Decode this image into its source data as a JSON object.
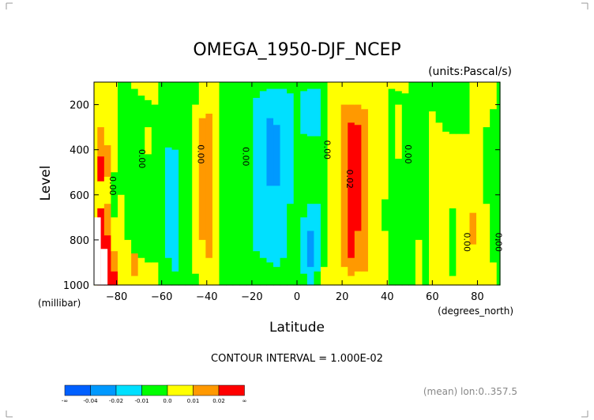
{
  "chart_data": {
    "type": "heatmap",
    "title": "OMEGA_1950-DJF_NCEP",
    "units": "(units:Pascal/s)",
    "xlabel": "Latitude",
    "ylabel": "Level",
    "x_units": "(degrees_north)",
    "y_units": "(millibar)",
    "xlim": [
      -90,
      90
    ],
    "ylim": [
      1000,
      100
    ],
    "x_ticks": [
      -80,
      -60,
      -40,
      -20,
      0,
      20,
      40,
      60,
      80
    ],
    "y_ticks": [
      200,
      400,
      600,
      800,
      1000
    ],
    "contour_interval_text": "CONTOUR INTERVAL = 1.000E-02",
    "footer_text": "(mean) lon:0..357.5",
    "contour_labels": [
      {
        "text": "0.00",
        "lat": -83,
        "lev": 560
      },
      {
        "text": "0.00",
        "lat": -70,
        "lev": 440
      },
      {
        "text": "0.00",
        "lat": -44,
        "lev": 420
      },
      {
        "text": "0.00",
        "lat": -24,
        "lev": 430
      },
      {
        "text": "0.00",
        "lat": 12,
        "lev": 400
      },
      {
        "text": "0.02",
        "lat": 22,
        "lev": 530
      },
      {
        "text": "0.00",
        "lat": 48,
        "lev": 420
      },
      {
        "text": "0.00",
        "lat": 74,
        "lev": 810
      },
      {
        "text": "0.00",
        "lat": 88,
        "lev": 810
      }
    ],
    "legend": {
      "colors": [
        "#0060ff",
        "#0099ff",
        "#00e0ff",
        "#00ff00",
        "#ffff00",
        "#ff9900",
        "#ff0000"
      ],
      "labels": [
        "-∞",
        "-0.04",
        "-0.02",
        "-0.01",
        "0.0",
        "0.01",
        "0.02",
        "∞"
      ]
    },
    "columns": [
      {
        "lat": -90,
        "segs": [
          [
            100,
            1000,
            4
          ]
        ]
      },
      {
        "lat": -87,
        "segs": [
          [
            100,
            300,
            4
          ],
          [
            300,
            430,
            5
          ],
          [
            430,
            540,
            6
          ],
          [
            540,
            660,
            4
          ],
          [
            660,
            820,
            6
          ],
          [
            820,
            1000,
            6
          ]
        ]
      },
      {
        "lat": -84,
        "segs": [
          [
            100,
            380,
            4
          ],
          [
            380,
            520,
            5
          ],
          [
            520,
            640,
            4
          ],
          [
            640,
            780,
            5
          ],
          [
            780,
            900,
            6
          ],
          [
            900,
            1000,
            6
          ]
        ]
      },
      {
        "lat": -81,
        "segs": [
          [
            100,
            500,
            4
          ],
          [
            500,
            700,
            3
          ],
          [
            700,
            850,
            4
          ],
          [
            850,
            940,
            5
          ],
          [
            940,
            1000,
            6
          ]
        ]
      },
      {
        "lat": -78,
        "segs": [
          [
            100,
            600,
            3
          ],
          [
            600,
            820,
            4
          ],
          [
            820,
            1000,
            4
          ]
        ]
      },
      {
        "lat": -75,
        "segs": [
          [
            100,
            250,
            3
          ],
          [
            250,
            800,
            3
          ],
          [
            800,
            1000,
            4
          ]
        ]
      },
      {
        "lat": -72,
        "segs": [
          [
            100,
            130,
            4
          ],
          [
            130,
            860,
            3
          ],
          [
            860,
            960,
            5
          ],
          [
            960,
            1000,
            4
          ]
        ]
      },
      {
        "lat": -69,
        "segs": [
          [
            100,
            160,
            4
          ],
          [
            160,
            880,
            3
          ],
          [
            880,
            1000,
            4
          ]
        ]
      },
      {
        "lat": -66,
        "segs": [
          [
            100,
            180,
            4
          ],
          [
            180,
            300,
            3
          ],
          [
            300,
            420,
            4
          ],
          [
            420,
            900,
            3
          ],
          [
            900,
            1000,
            4
          ]
        ]
      },
      {
        "lat": -63,
        "segs": [
          [
            100,
            200,
            4
          ],
          [
            200,
            900,
            3
          ],
          [
            900,
            1000,
            4
          ]
        ]
      },
      {
        "lat": -60,
        "segs": [
          [
            100,
            1000,
            3
          ]
        ]
      },
      {
        "lat": -57,
        "segs": [
          [
            100,
            390,
            3
          ],
          [
            390,
            880,
            2
          ],
          [
            880,
            1000,
            3
          ]
        ]
      },
      {
        "lat": -54,
        "segs": [
          [
            100,
            400,
            3
          ],
          [
            400,
            940,
            2
          ],
          [
            940,
            1000,
            3
          ]
        ]
      },
      {
        "lat": -51,
        "segs": [
          [
            100,
            1000,
            3
          ]
        ]
      },
      {
        "lat": -48,
        "segs": [
          [
            100,
            1000,
            3
          ]
        ]
      },
      {
        "lat": -45,
        "segs": [
          [
            100,
            200,
            3
          ],
          [
            200,
            950,
            4
          ],
          [
            950,
            1000,
            3
          ]
        ]
      },
      {
        "lat": -42,
        "segs": [
          [
            100,
            260,
            4
          ],
          [
            260,
            800,
            5
          ],
          [
            800,
            1000,
            4
          ]
        ]
      },
      {
        "lat": -39,
        "segs": [
          [
            100,
            240,
            4
          ],
          [
            240,
            880,
            5
          ],
          [
            880,
            1000,
            4
          ]
        ]
      },
      {
        "lat": -36,
        "segs": [
          [
            100,
            1000,
            4
          ]
        ]
      },
      {
        "lat": -33,
        "segs": [
          [
            100,
            1000,
            3
          ]
        ]
      },
      {
        "lat": -30,
        "segs": [
          [
            100,
            1000,
            3
          ]
        ]
      },
      {
        "lat": -27,
        "segs": [
          [
            100,
            1000,
            3
          ]
        ]
      },
      {
        "lat": -24,
        "segs": [
          [
            100,
            1000,
            3
          ]
        ]
      },
      {
        "lat": -21,
        "segs": [
          [
            100,
            1000,
            3
          ]
        ]
      },
      {
        "lat": -18,
        "segs": [
          [
            100,
            170,
            3
          ],
          [
            170,
            850,
            2
          ],
          [
            850,
            1000,
            3
          ]
        ]
      },
      {
        "lat": -15,
        "segs": [
          [
            100,
            140,
            3
          ],
          [
            140,
            880,
            2
          ],
          [
            880,
            1000,
            3
          ]
        ]
      },
      {
        "lat": -12,
        "segs": [
          [
            100,
            130,
            3
          ],
          [
            130,
            260,
            2
          ],
          [
            260,
            560,
            1
          ],
          [
            560,
            900,
            2
          ],
          [
            900,
            1000,
            3
          ]
        ]
      },
      {
        "lat": -9,
        "segs": [
          [
            100,
            130,
            3
          ],
          [
            130,
            290,
            2
          ],
          [
            290,
            560,
            1
          ],
          [
            560,
            920,
            2
          ],
          [
            920,
            1000,
            3
          ]
        ]
      },
      {
        "lat": -6,
        "segs": [
          [
            100,
            130,
            3
          ],
          [
            130,
            880,
            2
          ],
          [
            880,
            1000,
            3
          ]
        ]
      },
      {
        "lat": -3,
        "segs": [
          [
            100,
            150,
            3
          ],
          [
            150,
            640,
            2
          ],
          [
            640,
            1000,
            3
          ]
        ]
      },
      {
        "lat": 0,
        "segs": [
          [
            100,
            1000,
            3
          ]
        ]
      },
      {
        "lat": 3,
        "segs": [
          [
            100,
            140,
            3
          ],
          [
            140,
            330,
            2
          ],
          [
            330,
            700,
            3
          ],
          [
            700,
            950,
            2
          ],
          [
            950,
            1000,
            3
          ]
        ]
      },
      {
        "lat": 6,
        "segs": [
          [
            100,
            130,
            3
          ],
          [
            130,
            340,
            2
          ],
          [
            340,
            640,
            3
          ],
          [
            640,
            760,
            2
          ],
          [
            760,
            920,
            1
          ],
          [
            920,
            1000,
            2
          ]
        ]
      },
      {
        "lat": 9,
        "segs": [
          [
            100,
            130,
            3
          ],
          [
            130,
            340,
            2
          ],
          [
            340,
            640,
            3
          ],
          [
            640,
            940,
            2
          ],
          [
            940,
            1000,
            3
          ]
        ]
      },
      {
        "lat": 12,
        "segs": [
          [
            100,
            240,
            3
          ],
          [
            240,
            920,
            3
          ],
          [
            920,
            1000,
            4
          ]
        ]
      },
      {
        "lat": 15,
        "segs": [
          [
            100,
            1000,
            4
          ]
        ]
      },
      {
        "lat": 18,
        "segs": [
          [
            100,
            160,
            4
          ],
          [
            160,
            940,
            4
          ],
          [
            940,
            1000,
            4
          ]
        ]
      },
      {
        "lat": 21,
        "segs": [
          [
            100,
            200,
            4
          ],
          [
            200,
            920,
            5
          ],
          [
            920,
            1000,
            4
          ]
        ]
      },
      {
        "lat": 24,
        "segs": [
          [
            100,
            200,
            4
          ],
          [
            200,
            280,
            5
          ],
          [
            280,
            880,
            6
          ],
          [
            880,
            960,
            5
          ],
          [
            960,
            1000,
            4
          ]
        ]
      },
      {
        "lat": 27,
        "segs": [
          [
            100,
            200,
            4
          ],
          [
            200,
            290,
            5
          ],
          [
            290,
            760,
            6
          ],
          [
            760,
            940,
            5
          ],
          [
            940,
            1000,
            4
          ]
        ]
      },
      {
        "lat": 30,
        "segs": [
          [
            100,
            220,
            4
          ],
          [
            220,
            940,
            5
          ],
          [
            940,
            1000,
            4
          ]
        ]
      },
      {
        "lat": 33,
        "segs": [
          [
            100,
            1000,
            4
          ]
        ]
      },
      {
        "lat": 36,
        "segs": [
          [
            100,
            1000,
            4
          ]
        ]
      },
      {
        "lat": 39,
        "segs": [
          [
            100,
            620,
            4
          ],
          [
            620,
            760,
            3
          ],
          [
            760,
            1000,
            4
          ]
        ]
      },
      {
        "lat": 42,
        "segs": [
          [
            100,
            130,
            4
          ],
          [
            130,
            1000,
            3
          ]
        ]
      },
      {
        "lat": 45,
        "segs": [
          [
            100,
            140,
            4
          ],
          [
            140,
            200,
            3
          ],
          [
            200,
            440,
            4
          ],
          [
            440,
            1000,
            3
          ]
        ]
      },
      {
        "lat": 48,
        "segs": [
          [
            100,
            150,
            4
          ],
          [
            150,
            1000,
            3
          ]
        ]
      },
      {
        "lat": 51,
        "segs": [
          [
            100,
            150,
            3
          ],
          [
            150,
            520,
            3
          ],
          [
            520,
            1000,
            3
          ]
        ]
      },
      {
        "lat": 54,
        "segs": [
          [
            100,
            180,
            3
          ],
          [
            180,
            800,
            3
          ],
          [
            800,
            1000,
            4
          ]
        ]
      },
      {
        "lat": 57,
        "segs": [
          [
            100,
            200,
            3
          ],
          [
            200,
            1000,
            3
          ]
        ]
      },
      {
        "lat": 60,
        "segs": [
          [
            100,
            230,
            3
          ],
          [
            230,
            580,
            4
          ],
          [
            580,
            1000,
            4
          ]
        ]
      },
      {
        "lat": 63,
        "segs": [
          [
            100,
            280,
            3
          ],
          [
            280,
            1000,
            4
          ]
        ]
      },
      {
        "lat": 66,
        "segs": [
          [
            100,
            320,
            3
          ],
          [
            320,
            1000,
            4
          ]
        ]
      },
      {
        "lat": 69,
        "segs": [
          [
            100,
            330,
            3
          ],
          [
            330,
            660,
            4
          ],
          [
            660,
            960,
            3
          ],
          [
            960,
            1000,
            4
          ]
        ]
      },
      {
        "lat": 72,
        "segs": [
          [
            100,
            330,
            3
          ],
          [
            330,
            1000,
            4
          ]
        ]
      },
      {
        "lat": 75,
        "segs": [
          [
            100,
            330,
            3
          ],
          [
            330,
            1000,
            4
          ]
        ]
      },
      {
        "lat": 78,
        "segs": [
          [
            100,
            330,
            4
          ],
          [
            330,
            680,
            4
          ],
          [
            680,
            820,
            5
          ],
          [
            820,
            1000,
            4
          ]
        ]
      },
      {
        "lat": 81,
        "segs": [
          [
            100,
            300,
            4
          ],
          [
            300,
            1000,
            4
          ]
        ]
      },
      {
        "lat": 84,
        "segs": [
          [
            100,
            300,
            4
          ],
          [
            300,
            640,
            3
          ],
          [
            640,
            1000,
            4
          ]
        ]
      },
      {
        "lat": 87,
        "segs": [
          [
            100,
            220,
            4
          ],
          [
            220,
            900,
            3
          ],
          [
            900,
            1000,
            4
          ]
        ]
      },
      {
        "lat": 90,
        "segs": [
          [
            100,
            1000,
            3
          ]
        ]
      }
    ],
    "blanks": [
      {
        "lat": [
          -90,
          -87
        ],
        "lev": [
          700,
          1000
        ]
      },
      {
        "lat": [
          -87,
          -84
        ],
        "lev": [
          840,
          1000
        ]
      }
    ]
  }
}
